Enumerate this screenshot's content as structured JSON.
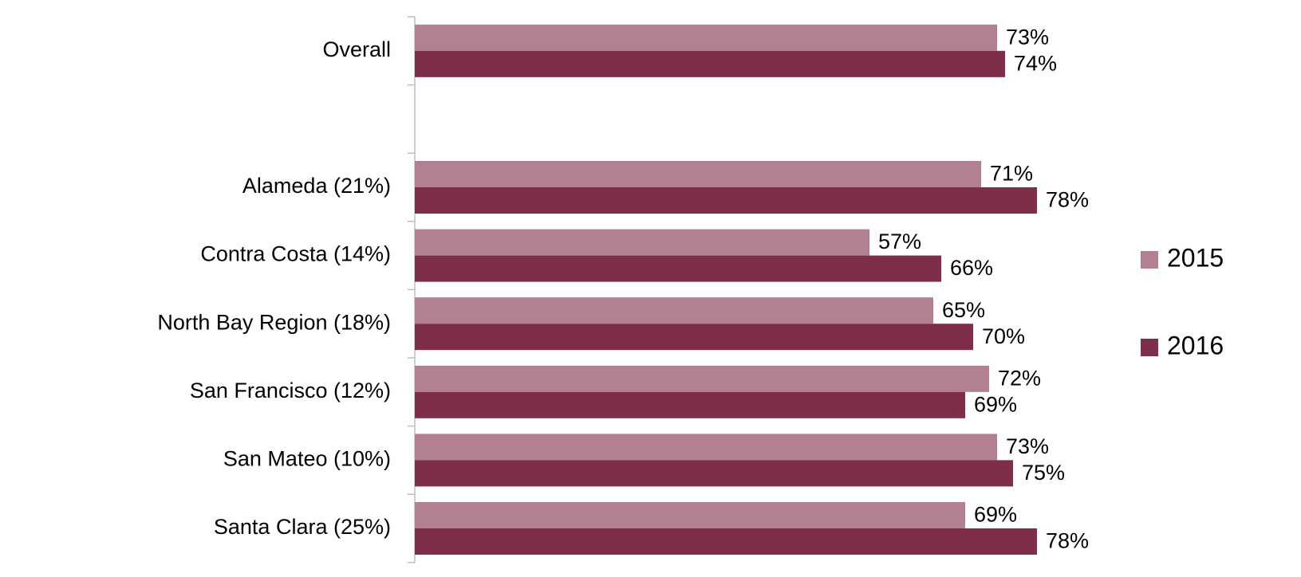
{
  "chart_data": {
    "type": "bar",
    "orientation": "horizontal",
    "categories": [
      "Overall",
      "",
      "Alameda (21%)",
      "Contra Costa (14%)",
      "North Bay Region (18%)",
      "San Francisco (12%)",
      "San Mateo (10%)",
      "Santa Clara (25%)"
    ],
    "series": [
      {
        "name": "2015",
        "color": "#b3808f",
        "values": [
          73,
          null,
          71,
          57,
          65,
          72,
          73,
          69
        ],
        "labels": [
          "73%",
          "",
          "71%",
          "57%",
          "65%",
          "72%",
          "73%",
          "69%"
        ]
      },
      {
        "name": "2016",
        "color": "#7e2d4b",
        "values": [
          74,
          null,
          78,
          66,
          70,
          69,
          75,
          78
        ],
        "labels": [
          "74%",
          "",
          "78%",
          "66%",
          "70%",
          "69%",
          "75%",
          "78%"
        ]
      }
    ],
    "xlim": [
      0,
      100
    ],
    "grid": false,
    "legend": "right",
    "axis_color": "#bfbfbf"
  }
}
